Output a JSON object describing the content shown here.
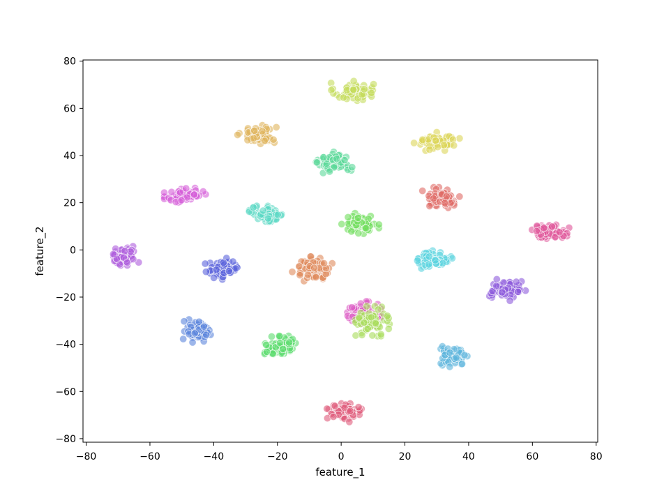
{
  "chart_data": {
    "type": "scatter",
    "xlabel": "feature_1",
    "ylabel": "feature_2",
    "xlim": [
      -81,
      80.5
    ],
    "ylim": [
      -81.5,
      80.5
    ],
    "xticks": [
      -80,
      -60,
      -40,
      -20,
      0,
      20,
      40,
      60,
      80
    ],
    "yticks": [
      -80,
      -60,
      -40,
      -20,
      0,
      20,
      40,
      60,
      80
    ],
    "xtick_labels": [
      "−80",
      "−60",
      "−40",
      "−20",
      "0",
      "20",
      "40",
      "60",
      "80"
    ],
    "ytick_labels": [
      "−80",
      "−60",
      "−40",
      "−20",
      "0",
      "20",
      "40",
      "60",
      "80"
    ],
    "grid": false,
    "legend": "none",
    "marker_opacity": 0.6,
    "clusters": [
      {
        "color": "#c5dc5c",
        "center": [
          4,
          67
        ],
        "spread": [
          5.5,
          3.5
        ]
      },
      {
        "color": "#e0b45c",
        "center": [
          -26,
          49
        ],
        "spread": [
          5,
          3.5
        ]
      },
      {
        "color": "#dcd658",
        "center": [
          30,
          46
        ],
        "spread": [
          5.5,
          3
        ]
      },
      {
        "color": "#5cd89a",
        "center": [
          -2,
          37
        ],
        "spread": [
          4.5,
          3.5
        ]
      },
      {
        "color": "#d65fd8",
        "center": [
          -49,
          23
        ],
        "spread": [
          5,
          3
        ]
      },
      {
        "color": "#e06a66",
        "center": [
          32,
          22
        ],
        "spread": [
          5,
          3.5
        ]
      },
      {
        "color": "#5cd8c4",
        "center": [
          -23,
          15
        ],
        "spread": [
          4.5,
          3
        ]
      },
      {
        "color": "#6fdd5c",
        "center": [
          6,
          11
        ],
        "spread": [
          4.5,
          3.5
        ]
      },
      {
        "color": "#e0559a",
        "center": [
          65,
          8
        ],
        "spread": [
          5,
          2.5
        ]
      },
      {
        "color": "#ad5cdc",
        "center": [
          -68,
          -3
        ],
        "spread": [
          3.5,
          3.5
        ]
      },
      {
        "color": "#5cd4e0",
        "center": [
          29,
          -4
        ],
        "spread": [
          4.5,
          3
        ]
      },
      {
        "color": "#e08a5c",
        "center": [
          -9,
          -8
        ],
        "spread": [
          5,
          4
        ]
      },
      {
        "color": "#5c64dc",
        "center": [
          -37,
          -8
        ],
        "spread": [
          5,
          3.5
        ]
      },
      {
        "color": "#8d5cdc",
        "center": [
          52,
          -17
        ],
        "spread": [
          4.5,
          3.5
        ]
      },
      {
        "color": "#dc5cc4",
        "center": [
          6,
          -27
        ],
        "spread": [
          5,
          4
        ]
      },
      {
        "color": "#a8dc5c",
        "center": [
          10,
          -30
        ],
        "spread": [
          4.5,
          5
        ]
      },
      {
        "color": "#5c86dc",
        "center": [
          -45,
          -34
        ],
        "spread": [
          3.5,
          4
        ]
      },
      {
        "color": "#5cdc6e",
        "center": [
          -19,
          -41
        ],
        "spread": [
          4.5,
          3.5
        ]
      },
      {
        "color": "#5cb4dc",
        "center": [
          35,
          -45
        ],
        "spread": [
          3.5,
          3.5
        ]
      },
      {
        "color": "#e05c7c",
        "center": [
          1,
          -69
        ],
        "spread": [
          5,
          3
        ]
      }
    ]
  }
}
